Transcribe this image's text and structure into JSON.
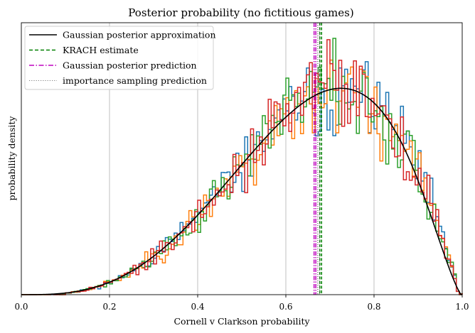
{
  "chart_data": {
    "type": "histogram",
    "title": "Posterior probability (no fictitious games)",
    "xlabel": "Cornell v Clarkson probability",
    "ylabel": "probability density",
    "xlim": [
      0.0,
      1.0
    ],
    "x_ticks": [
      "0.0",
      "0.2",
      "0.4",
      "0.6",
      "0.8",
      "1.0"
    ],
    "y_ticks": [],
    "grid": "vertical",
    "legend_position": "upper-left",
    "legend": [
      {
        "label": "Gaussian posterior approximation",
        "color": "#000000",
        "style": "solid"
      },
      {
        "label": "KRACH estimate",
        "color": "#008000",
        "style": "dashed"
      },
      {
        "label": "Gaussian posterior prediction",
        "color": "#bf00bf",
        "style": "dashdot"
      },
      {
        "label": "importance sampling prediction",
        "color": "#808080",
        "style": "dotted"
      }
    ],
    "gaussian_curve": {
      "name": "Gaussian posterior approximation",
      "mode": 0.725,
      "peak_density": 3.4
    },
    "krach_estimate": [
      0.677,
      0.681
    ],
    "gaussian_prediction": [
      0.664,
      0.668
    ],
    "importance_prediction": [
      0.672,
      0.676
    ],
    "histogram_series": [
      {
        "color": "#1f77b4",
        "seed": 11
      },
      {
        "color": "#ff7f0e",
        "seed": 23
      },
      {
        "color": "#2ca02c",
        "seed": 37
      },
      {
        "color": "#d62728",
        "seed": 53
      }
    ],
    "histogram_bins": 150
  }
}
